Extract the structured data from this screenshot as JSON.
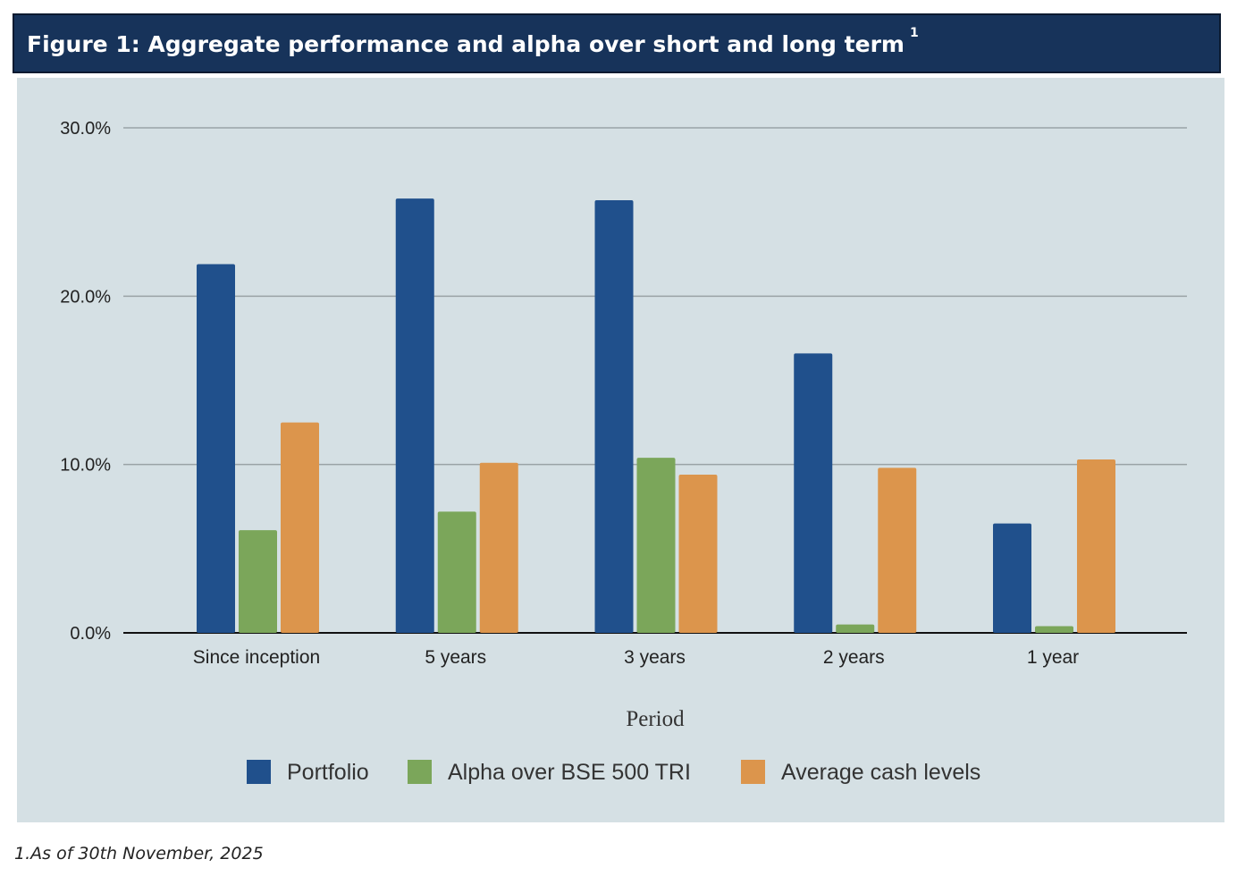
{
  "header": {
    "title": "Figure 1:  Aggregate performance and alpha over short and long term",
    "sup": "1"
  },
  "footnote": "1.As of 30th November, 2025",
  "chart_data": {
    "type": "bar",
    "title": "Figure 1:  Aggregate performance and alpha over short and long term",
    "xlabel": "Period",
    "ylabel": "",
    "categories": [
      "Since inception",
      "5 years",
      "3 years",
      "2 years",
      "1 year"
    ],
    "series": [
      {
        "name": "Portfolio",
        "color": "#20508c",
        "values": [
          21.9,
          25.8,
          25.7,
          16.6,
          6.5
        ]
      },
      {
        "name": "Alpha over BSE 500 TRI",
        "color": "#7ba65a",
        "values": [
          6.1,
          7.2,
          10.4,
          0.5,
          0.4
        ]
      },
      {
        "name": "Average cash levels",
        "color": "#dc954c",
        "values": [
          12.5,
          10.1,
          9.4,
          9.8,
          10.3
        ]
      }
    ],
    "ylim": [
      0,
      30
    ],
    "yticks": [
      "0.0%",
      "10.0%",
      "20.0%",
      "30.0%"
    ],
    "grid": true,
    "legend": "bottom"
  }
}
